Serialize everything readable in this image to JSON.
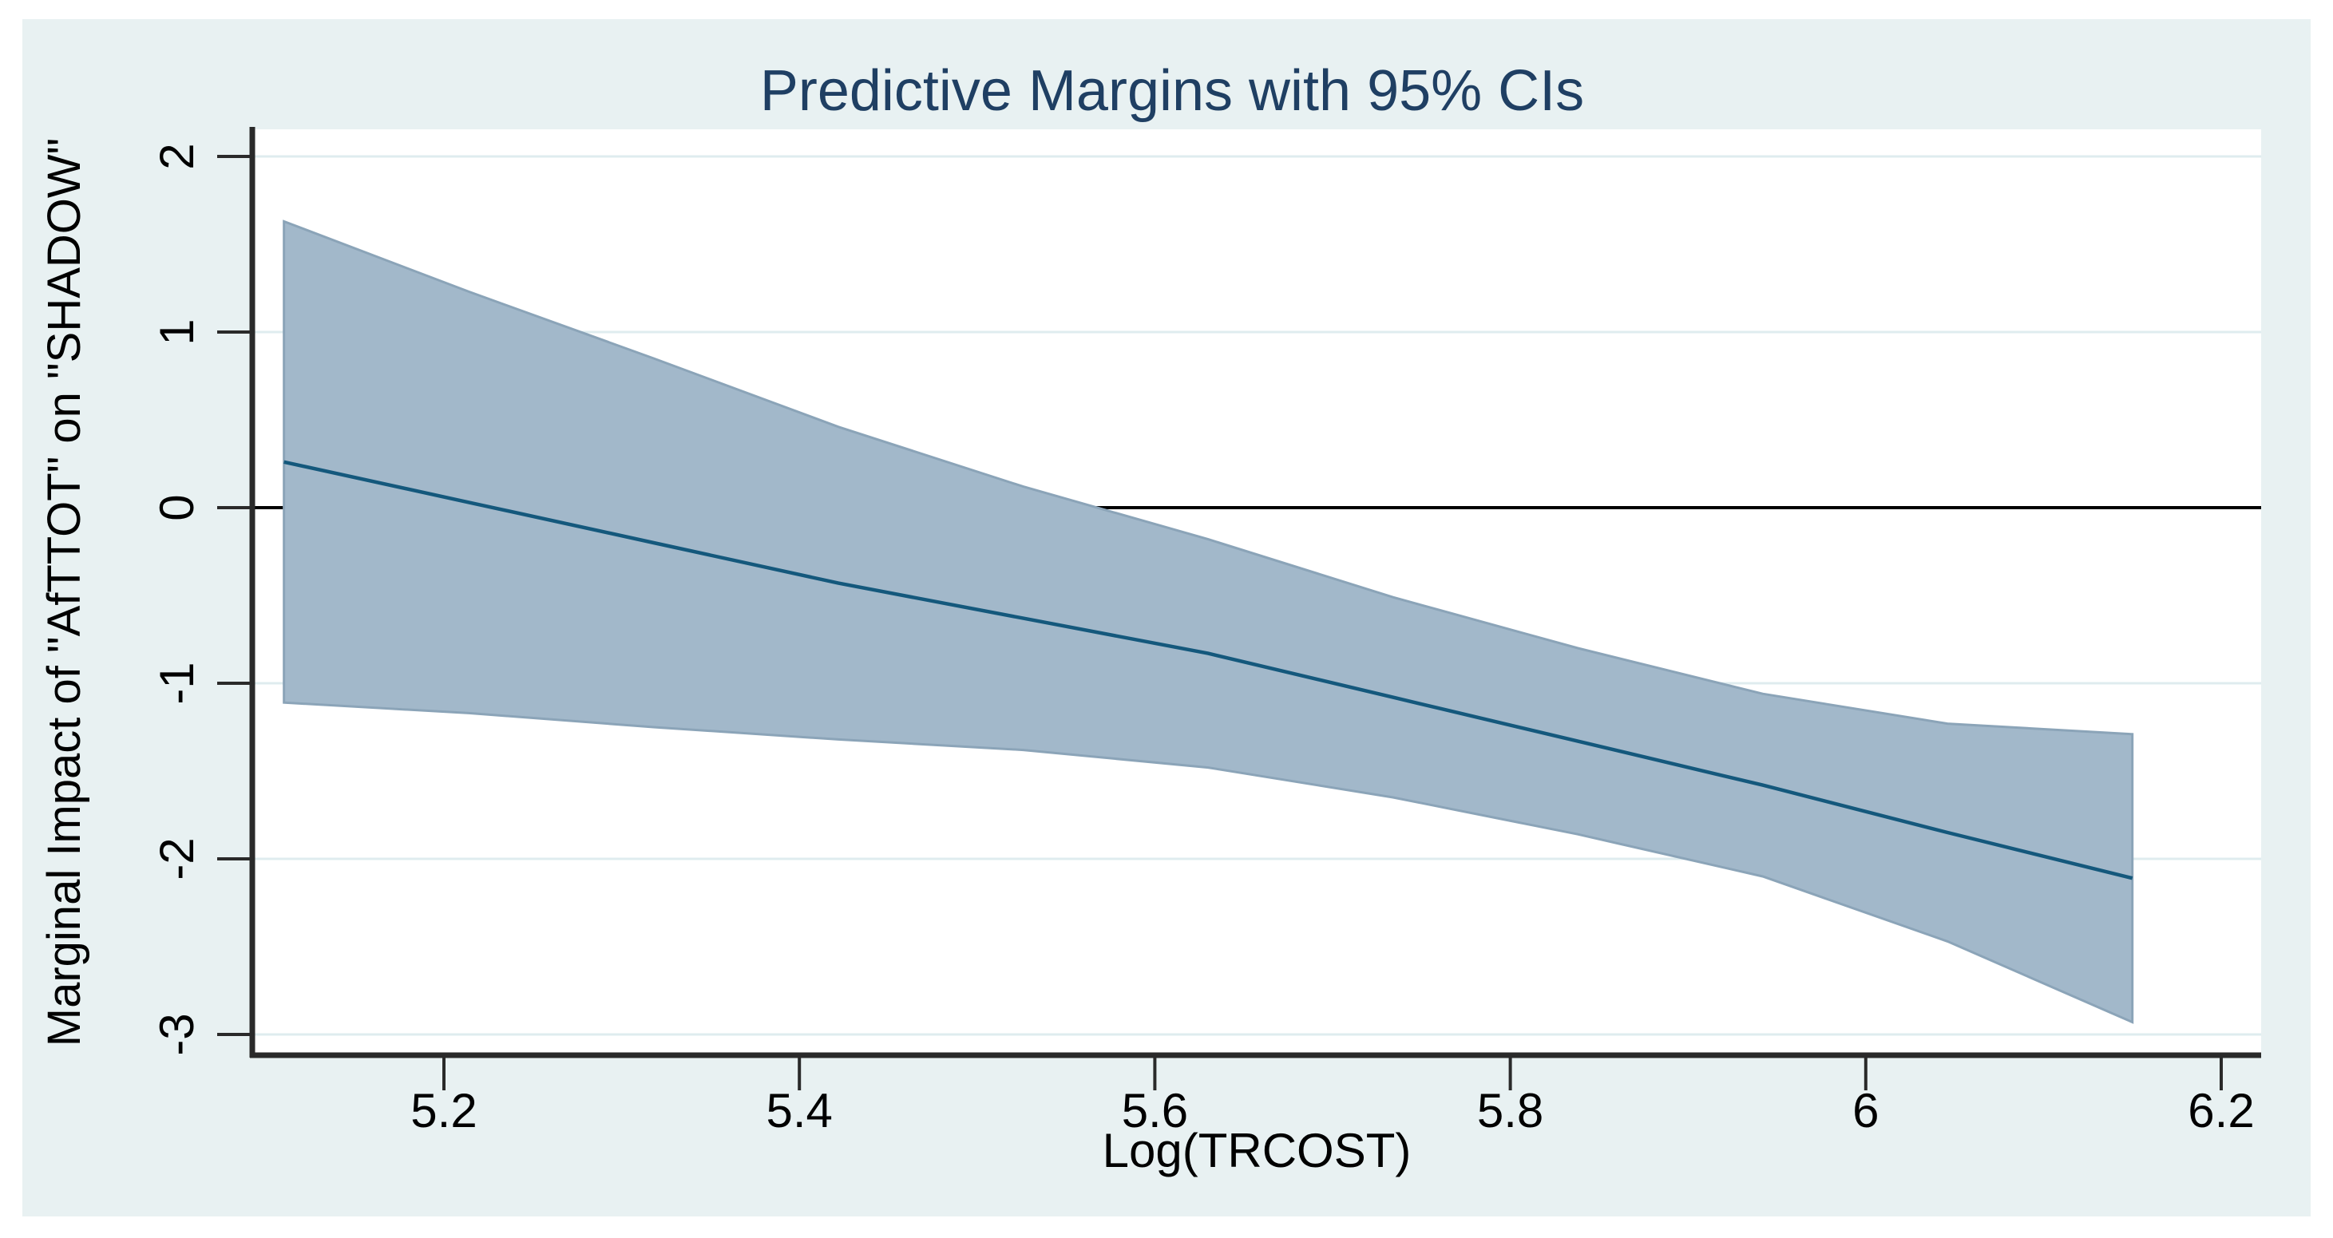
{
  "graph": {
    "canvas_color": "#e8f1f2",
    "plot_bg_color": "#ffffff",
    "gridline_color": "#dfecef",
    "axis_color": "#2a2a2a",
    "title_color": "#1f3f63",
    "zero_line_color": "#000000"
  },
  "chart_data": {
    "type": "area",
    "title": "Predictive Margins with 95% CIs",
    "xlabel": "Log(TRCOST)",
    "ylabel": "Marginal Impact of \"AfTTOT\" on \"SHADOW\"",
    "grid": "horizontal-only",
    "legend": "none",
    "xlim": [
      5.092,
      6.223
    ],
    "ylim": [
      -3.12,
      2.15
    ],
    "reference_line_y": 0,
    "x_ticks": [
      {
        "value": 5.2,
        "label": "5.2"
      },
      {
        "value": 5.4,
        "label": "5.4"
      },
      {
        "value": 5.6,
        "label": "5.6"
      },
      {
        "value": 5.8,
        "label": "5.8"
      },
      {
        "value": 6.0,
        "label": "6"
      },
      {
        "value": 6.2,
        "label": "6.2"
      }
    ],
    "y_ticks": [
      {
        "value": 2,
        "label": "2"
      },
      {
        "value": 1,
        "label": "1"
      },
      {
        "value": 0,
        "label": "0"
      },
      {
        "value": -1,
        "label": "-1"
      },
      {
        "value": -2,
        "label": "-2"
      },
      {
        "value": -3,
        "label": "-3"
      }
    ],
    "x": [
      5.11,
      5.214,
      5.318,
      5.422,
      5.526,
      5.63,
      5.734,
      5.838,
      5.942,
      6.046,
      6.15
    ],
    "series": [
      {
        "name": "predicted_margin",
        "style": "line",
        "color": "#14587c",
        "values": [
          0.26,
          0.03,
          -0.2,
          -0.43,
          -0.63,
          -0.83,
          -1.08,
          -1.33,
          -1.58,
          -1.85,
          -2.11
        ]
      },
      {
        "name": "ci95_upper",
        "style": "band-upper",
        "color": "#a2b8ca",
        "values": [
          1.63,
          1.23,
          0.85,
          0.46,
          0.12,
          -0.18,
          -0.51,
          -0.8,
          -1.06,
          -1.23,
          -1.29
        ]
      },
      {
        "name": "ci95_lower",
        "style": "band-lower",
        "color": "#a2b8ca",
        "values": [
          -1.11,
          -1.17,
          -1.25,
          -1.32,
          -1.38,
          -1.48,
          -1.65,
          -1.86,
          -2.1,
          -2.47,
          -2.93
        ]
      }
    ],
    "band_fill": "#a2b8ca",
    "band_edge": "#8ba4b8"
  }
}
